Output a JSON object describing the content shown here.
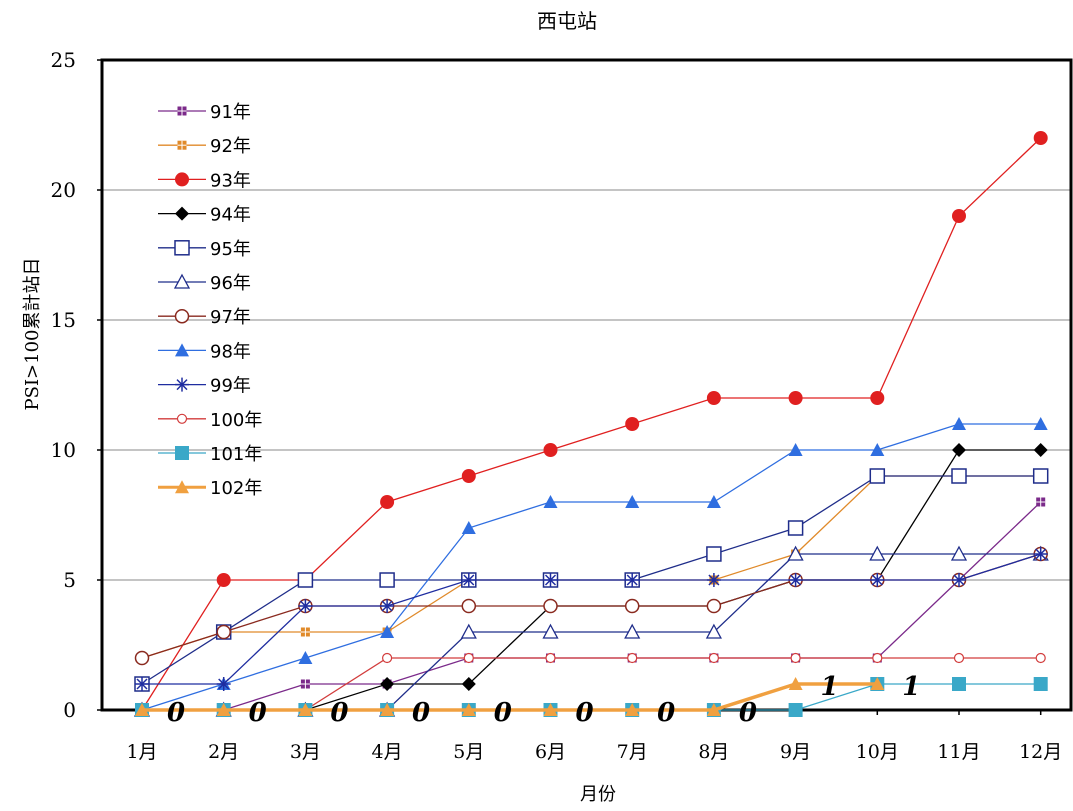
{
  "chart_data": {
    "type": "line",
    "title": "西屯站",
    "xlabel": "月份",
    "ylabel": "PSI>100累計站日",
    "ylim": [
      0,
      25
    ],
    "yticks": [
      0,
      5,
      10,
      15,
      20,
      25
    ],
    "grid": true,
    "legend_position": "top-left (inside plot)",
    "categories": [
      "1月",
      "2月",
      "3月",
      "4月",
      "5月",
      "6月",
      "7月",
      "8月",
      "9月",
      "10月",
      "11月",
      "12月"
    ],
    "series": [
      {
        "name": "91年",
        "color": "#7b2a8a",
        "marker": "dot-square",
        "values": [
          0,
          0,
          1,
          1,
          2,
          2,
          2,
          2,
          2,
          2,
          5,
          8
        ]
      },
      {
        "name": "92年",
        "color": "#e08a2a",
        "marker": "dot-square",
        "values": [
          2,
          3,
          3,
          3,
          5,
          5,
          5,
          5,
          6,
          9,
          9,
          9
        ]
      },
      {
        "name": "93年",
        "color": "#e02020",
        "marker": "circle-filled",
        "values": [
          0,
          5,
          5,
          8,
          9,
          10,
          11,
          12,
          12,
          12,
          19,
          22
        ]
      },
      {
        "name": "94年",
        "color": "#000000",
        "marker": "diamond-filled",
        "values": [
          0,
          0,
          0,
          1,
          1,
          4,
          4,
          4,
          5,
          5,
          10,
          10
        ]
      },
      {
        "name": "95年",
        "color": "#1f2d8a",
        "marker": "square-open",
        "values": [
          1,
          3,
          5,
          5,
          5,
          5,
          5,
          6,
          7,
          9,
          9,
          9
        ]
      },
      {
        "name": "96年",
        "color": "#1f2d8a",
        "marker": "triangle-open",
        "values": [
          0,
          0,
          0,
          0,
          3,
          3,
          3,
          3,
          6,
          6,
          6,
          6
        ]
      },
      {
        "name": "97年",
        "color": "#8a2a1f",
        "marker": "circle-open",
        "values": [
          2,
          3,
          4,
          4,
          4,
          4,
          4,
          4,
          5,
          5,
          5,
          6
        ]
      },
      {
        "name": "98年",
        "color": "#2f6ee0",
        "marker": "triangle-filled",
        "values": [
          0,
          1,
          2,
          3,
          7,
          8,
          8,
          8,
          10,
          10,
          11,
          11
        ]
      },
      {
        "name": "99年",
        "color": "#1f2da0",
        "marker": "asterisk",
        "values": [
          1,
          1,
          4,
          4,
          5,
          5,
          5,
          5,
          5,
          5,
          5,
          6
        ]
      },
      {
        "name": "100年",
        "color": "#d23c3c",
        "marker": "circle-small",
        "values": [
          0,
          0,
          0,
          2,
          2,
          2,
          2,
          2,
          2,
          2,
          2,
          2
        ]
      },
      {
        "name": "101年",
        "color": "#3aa8c8",
        "marker": "square-filled",
        "values": [
          0,
          0,
          0,
          0,
          0,
          0,
          0,
          0,
          0,
          1,
          1,
          1
        ]
      },
      {
        "name": "102年",
        "color": "#f0a040",
        "marker": "triangle-filled",
        "values": [
          0,
          0,
          0,
          0,
          0,
          0,
          0,
          0,
          1,
          1,
          null,
          null
        ]
      }
    ],
    "annotations": [
      {
        "x": "1月",
        "y": 0,
        "text": "0"
      },
      {
        "x": "2月",
        "y": 0,
        "text": "0"
      },
      {
        "x": "3月",
        "y": 0,
        "text": "0"
      },
      {
        "x": "4月",
        "y": 0,
        "text": "0"
      },
      {
        "x": "5月",
        "y": 0,
        "text": "0"
      },
      {
        "x": "6月",
        "y": 0,
        "text": "0"
      },
      {
        "x": "7月",
        "y": 0,
        "text": "0"
      },
      {
        "x": "8月",
        "y": 0,
        "text": "0"
      },
      {
        "x": "9月",
        "y": 1,
        "text": "1"
      },
      {
        "x": "10月",
        "y": 1,
        "text": "1"
      }
    ]
  }
}
